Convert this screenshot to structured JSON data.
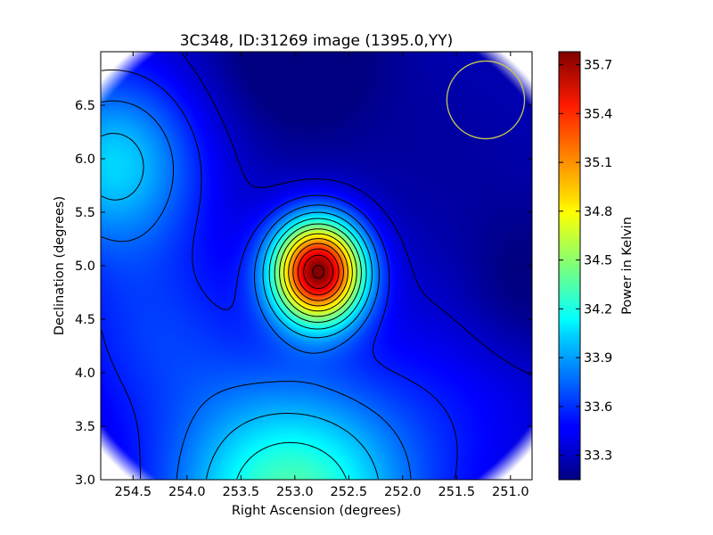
{
  "chart_data": {
    "type": "heatmap",
    "title": "3C348, ID:31269 image (1395.0,YY)",
    "xlabel": "Right Ascension (degrees)",
    "ylabel": "Declination (degrees)",
    "xlim": [
      254.8,
      250.8
    ],
    "ylim": [
      3.0,
      7.0
    ],
    "xticks": [
      254.5,
      254.0,
      253.5,
      253.0,
      252.5,
      252.0,
      251.5,
      251.0
    ],
    "xtick_labels": [
      "254.5",
      "254.0",
      "253.5",
      "253.0",
      "252.5",
      "252.0",
      "251.5",
      "251.0"
    ],
    "yticks": [
      3.0,
      3.5,
      4.0,
      4.5,
      5.0,
      5.5,
      6.0,
      6.5
    ],
    "ytick_labels": [
      "3.0",
      "3.5",
      "4.0",
      "4.5",
      "5.0",
      "5.5",
      "6.0",
      "6.5"
    ],
    "colormap": "jet",
    "colorbar": {
      "label": "Power in Kelvin",
      "range": [
        33.15,
        35.78
      ],
      "ticks": [
        33.3,
        33.6,
        33.9,
        34.2,
        34.5,
        34.8,
        35.1,
        35.4,
        35.7
      ],
      "tick_labels": [
        "33.3",
        "33.6",
        "33.9",
        "34.2",
        "34.5",
        "34.8",
        "35.1",
        "35.4",
        "35.7"
      ]
    },
    "peak": {
      "ra": 252.78,
      "dec": 4.95,
      "value": 35.75
    },
    "beam_circle": {
      "ra": 251.23,
      "dec": 6.55,
      "radius_deg": 0.36,
      "color": "#c8c850"
    },
    "contours": true,
    "grid": false
  }
}
